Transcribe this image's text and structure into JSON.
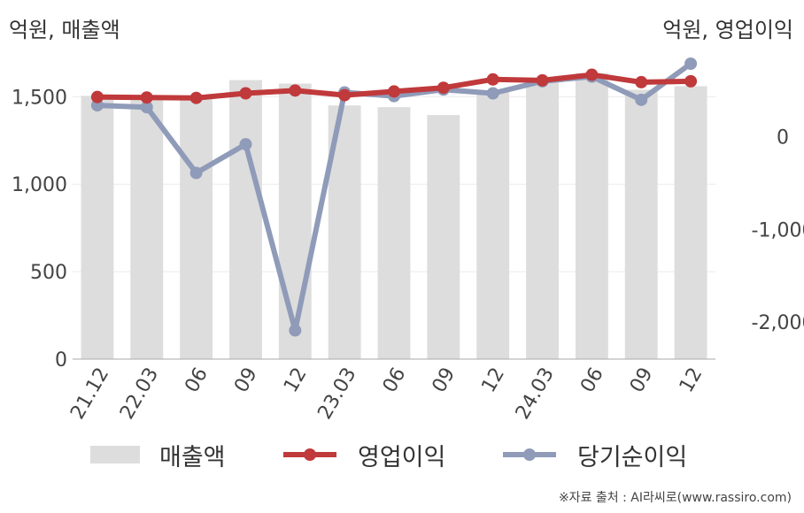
{
  "unit_left": "억원, 매출액",
  "unit_right": "억원, 영업이익",
  "source": "※자료 출처 : AI라씨로(www.rassiro.com)",
  "legend": [
    {
      "label": "매출액",
      "color": "#dddddd"
    },
    {
      "label": "영업이익",
      "color": "#c0393b"
    },
    {
      "label": "당기순이익",
      "color": "#8f9bb8"
    }
  ],
  "chart_data": {
    "type": "bar+line",
    "categories": [
      "21.12",
      "22.03",
      "06",
      "09",
      "12",
      "23.03",
      "06",
      "09",
      "12",
      "24.03",
      "06",
      "09",
      "12"
    ],
    "left_axis": {
      "ylim": [
        0,
        1800
      ],
      "ticks": [
        0,
        500,
        1000,
        1500
      ],
      "tick_labels": [
        "0",
        "500",
        "1,000",
        "1,500"
      ]
    },
    "right_axis": {
      "ylim": [
        -2400,
        1000
      ],
      "ticks": [
        -2000,
        -1000,
        0
      ],
      "tick_labels": [
        "-2,000",
        "-1,000",
        "0"
      ]
    },
    "series": [
      {
        "name": "매출액",
        "type": "bar",
        "axis": "left",
        "color": "#dddddd",
        "values": [
          1505,
          1500,
          1500,
          1595,
          1575,
          1450,
          1440,
          1395,
          1535,
          1600,
          1635,
          1540,
          1560
        ]
      },
      {
        "name": "영업이익",
        "type": "line",
        "axis": "right",
        "color": "#c0393b",
        "values": [
          430,
          425,
          420,
          470,
          500,
          450,
          490,
          530,
          620,
          610,
          670,
          590,
          600
        ]
      },
      {
        "name": "당기순이익",
        "type": "line",
        "axis": "right",
        "color": "#8f9bb8",
        "values": [
          340,
          320,
          -390,
          -80,
          -2090,
          480,
          440,
          510,
          470,
          600,
          650,
          400,
          790
        ]
      }
    ]
  }
}
